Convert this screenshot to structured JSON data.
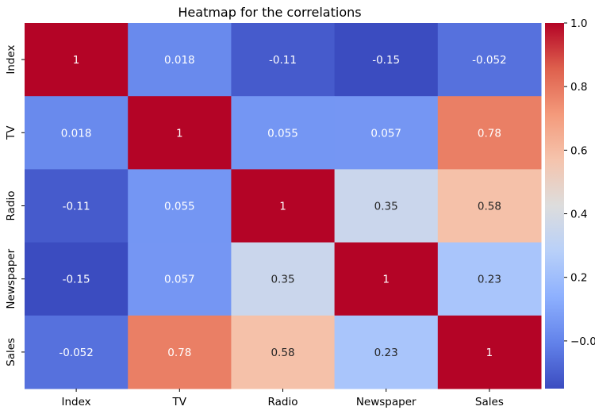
{
  "chart_data": {
    "type": "heatmap",
    "title": "Heatmap for the correlations",
    "x_categories": [
      "Index",
      "TV",
      "Radio",
      "Newspaper",
      "Sales"
    ],
    "y_categories": [
      "Index",
      "TV",
      "Radio",
      "Newspaper",
      "Sales"
    ],
    "values": [
      [
        1,
        0.018,
        -0.11,
        -0.15,
        -0.052
      ],
      [
        0.018,
        1,
        0.055,
        0.057,
        0.78
      ],
      [
        -0.11,
        0.055,
        1,
        0.35,
        0.58
      ],
      [
        -0.15,
        0.057,
        0.35,
        1,
        0.23
      ],
      [
        -0.052,
        0.78,
        0.58,
        0.23,
        1
      ]
    ],
    "value_labels": [
      [
        "1",
        "0.018",
        "-0.11",
        "-0.15",
        "-0.052"
      ],
      [
        "0.018",
        "1",
        "0.055",
        "0.057",
        "0.78"
      ],
      [
        "-0.11",
        "0.055",
        "1",
        "0.35",
        "0.58"
      ],
      [
        "-0.15",
        "0.057",
        "0.35",
        "1",
        "0.23"
      ],
      [
        "-0.052",
        "0.78",
        "0.58",
        "0.23",
        "1"
      ]
    ],
    "colormap": "coolwarm",
    "colorbar": {
      "range": [
        -0.15,
        1.0
      ],
      "ticks": [
        -0.0,
        0.2,
        0.4,
        0.6,
        0.8,
        1.0
      ],
      "tick_labels": [
        "−0.0",
        "0.2",
        "0.4",
        "0.6",
        "0.8",
        "1.0"
      ]
    },
    "colors": {
      "low": "#3b4cc0",
      "mid": "#dddddd",
      "high": "#b40426"
    }
  }
}
